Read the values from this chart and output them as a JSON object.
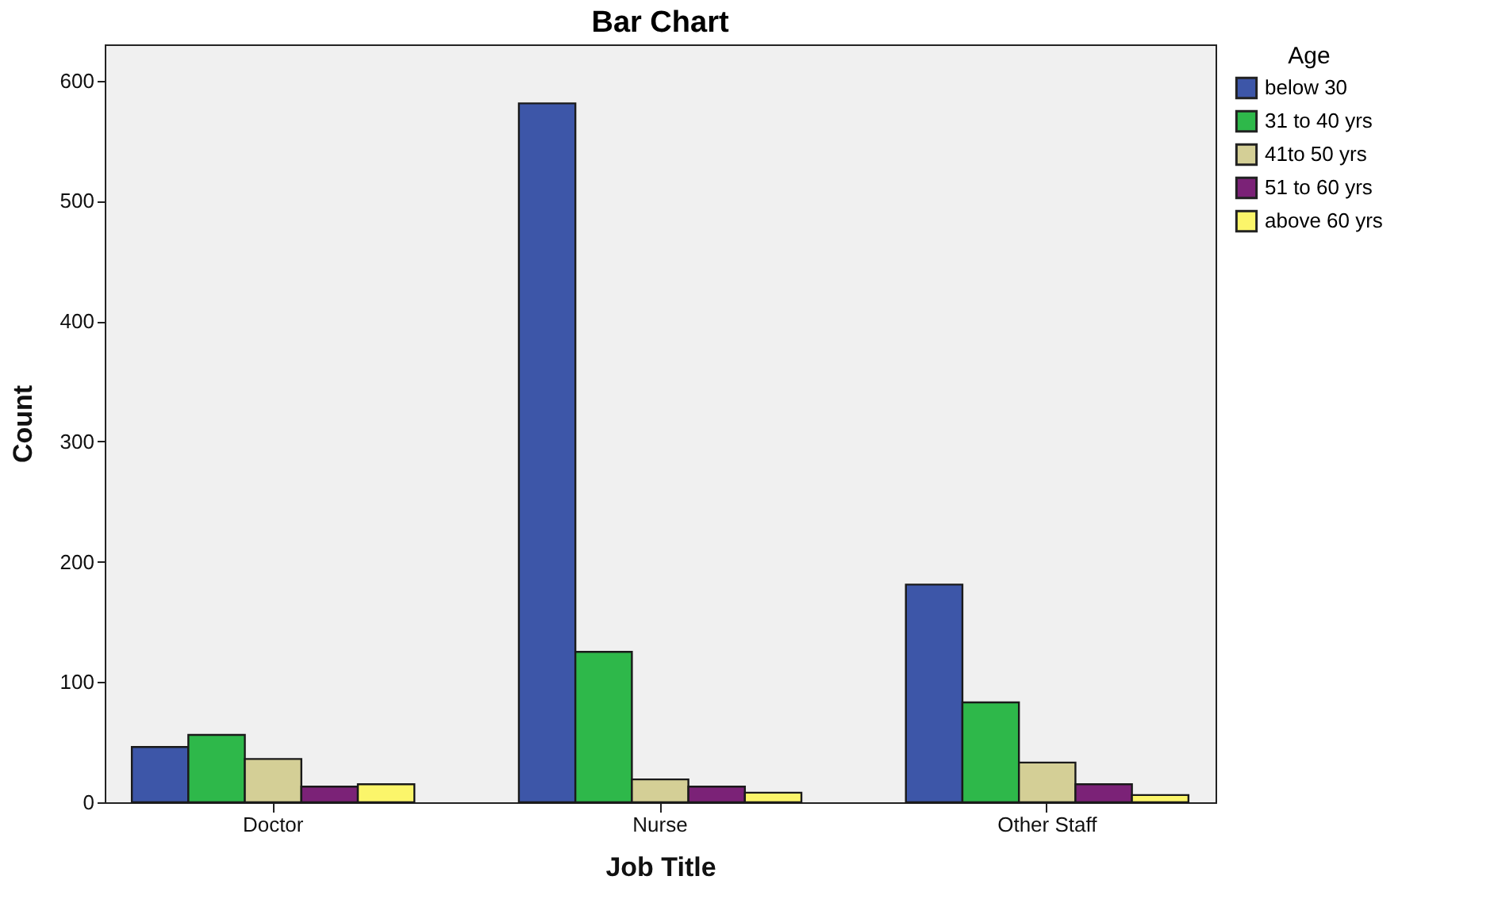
{
  "chart_data": {
    "type": "bar",
    "title": "Bar Chart",
    "xlabel": "Job Title",
    "ylabel": "Count",
    "legend_title": "Age",
    "categories": [
      "Doctor",
      "Nurse",
      "Other Staff"
    ],
    "series": [
      {
        "name": "below 30",
        "color": "#3d56a8",
        "values": [
          46,
          581,
          181
        ]
      },
      {
        "name": "31 to 40 yrs",
        "color": "#2eb84a",
        "values": [
          56,
          125,
          83
        ]
      },
      {
        "name": "41to 50 yrs",
        "color": "#d4cf96",
        "values": [
          36,
          19,
          33
        ]
      },
      {
        "name": "51 to 60 yrs",
        "color": "#7b2277",
        "values": [
          13,
          13,
          15
        ]
      },
      {
        "name": "above 60 yrs",
        "color": "#fbf56a",
        "values": [
          15,
          8,
          6
        ]
      }
    ],
    "ylim": [
      0,
      630
    ],
    "yticks": [
      0,
      100,
      200,
      300,
      400,
      500,
      600
    ],
    "grid": false,
    "legend": "top right"
  }
}
